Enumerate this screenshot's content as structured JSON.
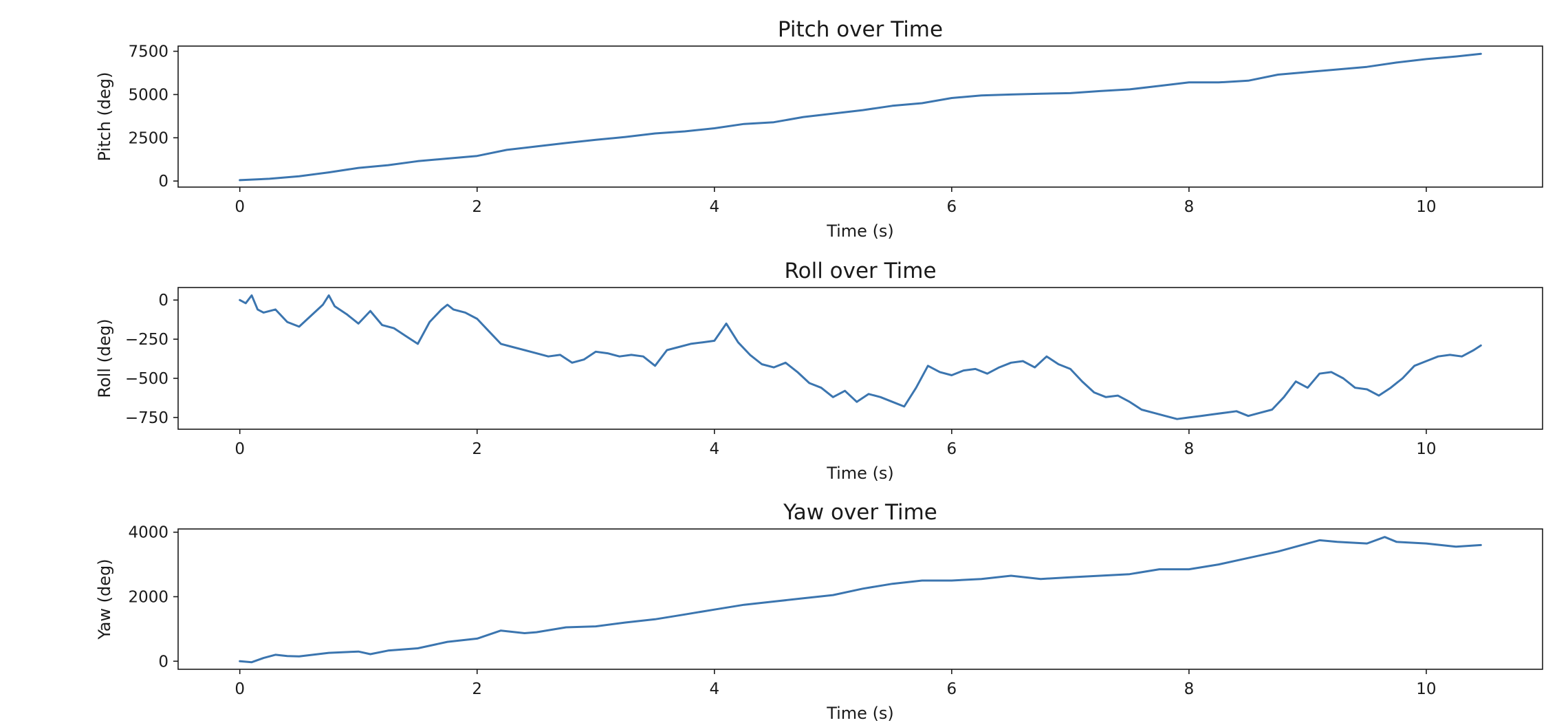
{
  "figure": {
    "line_color": "#3b75af",
    "background": "#ffffff"
  },
  "chart_data": [
    {
      "type": "line",
      "title": "Pitch over Time",
      "xlabel": "Time (s)",
      "ylabel": "Pitch (deg)",
      "xlim": [
        -0.52,
        10.98
      ],
      "ylim": [
        -350,
        7800
      ],
      "xticks": [
        0,
        2,
        4,
        6,
        8,
        10
      ],
      "yticks": [
        0,
        2500,
        5000,
        7500
      ],
      "ytick_labels": [
        "0",
        "2500",
        "5000",
        "7500"
      ],
      "grid": false,
      "x": [
        0.0,
        0.25,
        0.5,
        0.75,
        1.0,
        1.25,
        1.5,
        1.75,
        2.0,
        2.25,
        2.5,
        2.75,
        3.0,
        3.25,
        3.5,
        3.75,
        4.0,
        4.25,
        4.5,
        4.75,
        5.0,
        5.25,
        5.5,
        5.75,
        6.0,
        6.25,
        6.5,
        6.75,
        7.0,
        7.25,
        7.5,
        7.75,
        8.0,
        8.25,
        8.5,
        8.75,
        9.0,
        9.25,
        9.5,
        9.75,
        10.0,
        10.25,
        10.46
      ],
      "values": [
        50,
        130,
        280,
        500,
        760,
        920,
        1150,
        1300,
        1450,
        1800,
        2000,
        2200,
        2380,
        2550,
        2750,
        2870,
        3050,
        3300,
        3400,
        3700,
        3900,
        4100,
        4350,
        4500,
        4800,
        4950,
        5000,
        5050,
        5080,
        5200,
        5300,
        5500,
        5700,
        5700,
        5800,
        6150,
        6300,
        6450,
        6600,
        6850,
        7050,
        7200,
        7350
      ]
    },
    {
      "type": "line",
      "title": "Roll over Time",
      "xlabel": "Time (s)",
      "ylabel": "Roll (deg)",
      "xlim": [
        -0.52,
        10.98
      ],
      "ylim": [
        -825,
        80
      ],
      "xticks": [
        0,
        2,
        4,
        6,
        8,
        10
      ],
      "yticks": [
        -750,
        -500,
        -250,
        0
      ],
      "ytick_labels": [
        "−750",
        "−500",
        "−250",
        "0"
      ],
      "grid": false,
      "x": [
        0.0,
        0.05,
        0.1,
        0.15,
        0.2,
        0.3,
        0.4,
        0.5,
        0.6,
        0.7,
        0.75,
        0.8,
        0.9,
        1.0,
        1.1,
        1.2,
        1.3,
        1.4,
        1.5,
        1.6,
        1.7,
        1.75,
        1.8,
        1.9,
        2.0,
        2.1,
        2.2,
        2.3,
        2.4,
        2.5,
        2.6,
        2.7,
        2.8,
        2.9,
        3.0,
        3.1,
        3.2,
        3.3,
        3.4,
        3.5,
        3.6,
        3.7,
        3.8,
        3.9,
        4.0,
        4.1,
        4.2,
        4.3,
        4.4,
        4.5,
        4.6,
        4.7,
        4.8,
        4.9,
        5.0,
        5.1,
        5.2,
        5.3,
        5.4,
        5.5,
        5.6,
        5.7,
        5.8,
        5.9,
        6.0,
        6.1,
        6.2,
        6.3,
        6.4,
        6.5,
        6.6,
        6.7,
        6.8,
        6.9,
        7.0,
        7.1,
        7.2,
        7.3,
        7.4,
        7.5,
        7.6,
        7.7,
        7.8,
        7.9,
        8.0,
        8.1,
        8.2,
        8.3,
        8.4,
        8.5,
        8.6,
        8.7,
        8.8,
        8.9,
        9.0,
        9.1,
        9.2,
        9.3,
        9.4,
        9.5,
        9.6,
        9.7,
        9.8,
        9.9,
        10.0,
        10.1,
        10.2,
        10.3,
        10.4,
        10.46
      ],
      "values": [
        0,
        -20,
        30,
        -60,
        -80,
        -60,
        -140,
        -170,
        -100,
        -30,
        30,
        -40,
        -90,
        -150,
        -70,
        -160,
        -180,
        -230,
        -280,
        -140,
        -60,
        -30,
        -60,
        -80,
        -120,
        -200,
        -280,
        -300,
        -320,
        -340,
        -360,
        -350,
        -400,
        -380,
        -330,
        -340,
        -360,
        -350,
        -360,
        -420,
        -320,
        -300,
        -280,
        -270,
        -260,
        -150,
        -270,
        -350,
        -410,
        -430,
        -400,
        -460,
        -530,
        -560,
        -620,
        -580,
        -650,
        -600,
        -620,
        -650,
        -680,
        -560,
        -420,
        -460,
        -480,
        -450,
        -440,
        -470,
        -430,
        -400,
        -390,
        -430,
        -360,
        -410,
        -440,
        -520,
        -590,
        -620,
        -610,
        -650,
        -700,
        -720,
        -740,
        -760,
        -750,
        -740,
        -730,
        -720,
        -710,
        -740,
        -720,
        -700,
        -620,
        -520,
        -560,
        -470,
        -460,
        -500,
        -560,
        -570,
        -610,
        -560,
        -500,
        -420,
        -390,
        -360,
        -350,
        -360,
        -320,
        -290
      ]
    },
    {
      "type": "line",
      "title": "Yaw over Time",
      "xlabel": "Time (s)",
      "ylabel": "Yaw (deg)",
      "xlim": [
        -0.52,
        10.98
      ],
      "ylim": [
        -250,
        4100
      ],
      "xticks": [
        0,
        2,
        4,
        6,
        8,
        10
      ],
      "yticks": [
        0,
        2000,
        4000
      ],
      "ytick_labels": [
        "0",
        "2000",
        "4000"
      ],
      "grid": false,
      "x": [
        0.0,
        0.1,
        0.2,
        0.3,
        0.4,
        0.5,
        0.75,
        1.0,
        1.1,
        1.25,
        1.5,
        1.75,
        2.0,
        2.2,
        2.4,
        2.5,
        2.75,
        3.0,
        3.25,
        3.5,
        3.75,
        4.0,
        4.25,
        4.5,
        4.75,
        5.0,
        5.25,
        5.5,
        5.75,
        6.0,
        6.25,
        6.5,
        6.75,
        7.0,
        7.25,
        7.5,
        7.75,
        8.0,
        8.25,
        8.5,
        8.75,
        9.0,
        9.1,
        9.25,
        9.5,
        9.65,
        9.75,
        10.0,
        10.25,
        10.46
      ],
      "values": [
        0,
        -30,
        100,
        200,
        160,
        150,
        260,
        300,
        220,
        330,
        400,
        600,
        700,
        950,
        870,
        900,
        1050,
        1080,
        1200,
        1300,
        1450,
        1600,
        1750,
        1850,
        1950,
        2050,
        2250,
        2400,
        2500,
        2500,
        2550,
        2650,
        2550,
        2600,
        2650,
        2700,
        2850,
        2850,
        3000,
        3200,
        3400,
        3650,
        3750,
        3700,
        3650,
        3850,
        3700,
        3650,
        3550,
        3600
      ]
    }
  ]
}
